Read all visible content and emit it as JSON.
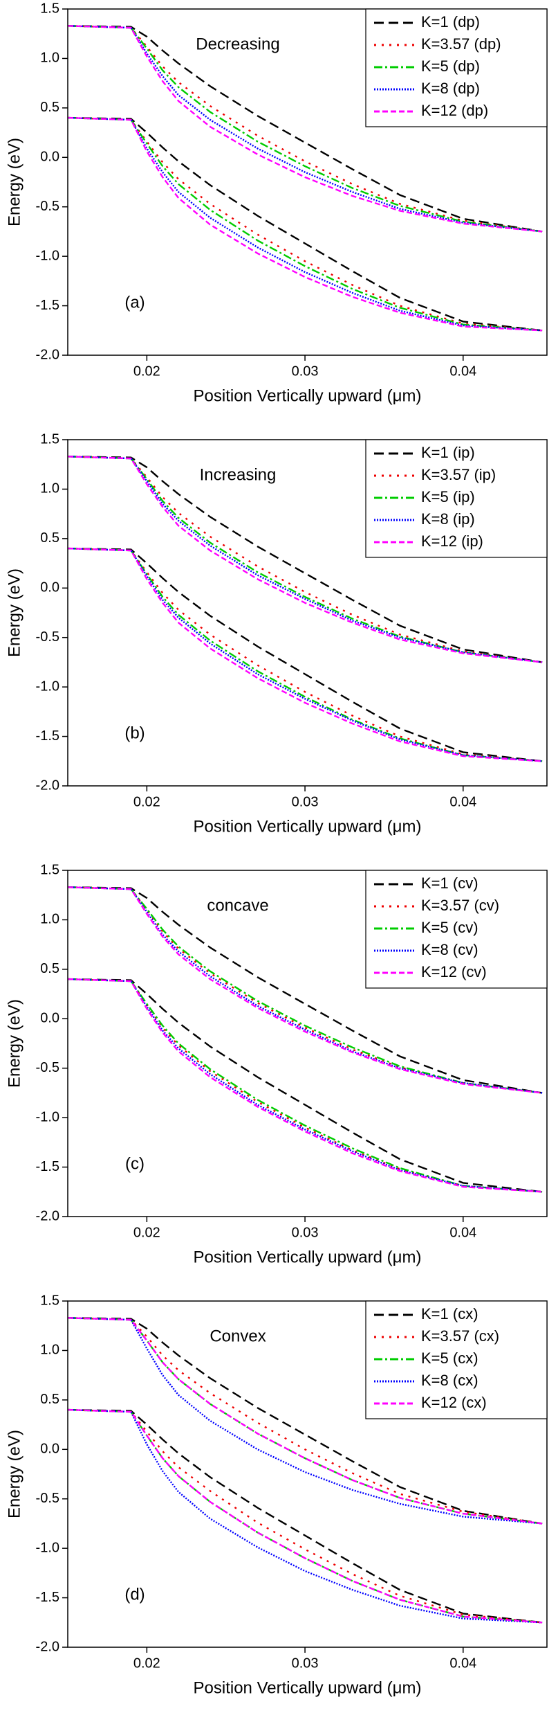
{
  "chart_data": [
    {
      "type": "line",
      "title": "Decreasing",
      "panel_label": "(a)",
      "x_label": "Position Vertically upward (μm)",
      "y_label": "Energy (eV)",
      "x": [
        0.015,
        0.019,
        0.02,
        0.021,
        0.022,
        0.024,
        0.027,
        0.03,
        0.033,
        0.036,
        0.04,
        0.045
      ],
      "xlim": [
        0.015,
        0.0453
      ],
      "ylim": [
        -2,
        1.5
      ],
      "xticks": [
        0.02,
        0.03,
        0.04
      ],
      "yticks": [
        {
          "value": -2,
          "label": "-2.0"
        },
        -1.5,
        {
          "value": -1,
          "label": "-1.0"
        },
        -0.5,
        {
          "value": 0,
          "label": "0.0"
        },
        0.5,
        {
          "value": 1,
          "label": "1.0"
        },
        1.5
      ],
      "legend": "upper-right",
      "series": [
        {
          "name": "K=1 (dp)",
          "color": "#000000",
          "dash": "14,7",
          "values": [
            1.33,
            1.32,
            1.22,
            1.08,
            0.95,
            0.72,
            0.42,
            0.15,
            -0.12,
            -0.38,
            -0.62,
            -0.75
          ],
          "lower": [
            0.4,
            0.39,
            0.25,
            0.1,
            -0.04,
            -0.28,
            -0.59,
            -0.87,
            -1.15,
            -1.42,
            -1.66,
            -1.75
          ]
        },
        {
          "name": "K=3.57 (dp)",
          "color": "#ee0000",
          "dash": "3,8",
          "values": [
            1.33,
            1.31,
            1.12,
            0.92,
            0.76,
            0.52,
            0.22,
            -0.04,
            -0.27,
            -0.47,
            -0.64,
            -0.75
          ],
          "lower": [
            0.4,
            0.38,
            0.16,
            -0.05,
            -0.22,
            -0.47,
            -0.78,
            -1.05,
            -1.29,
            -1.5,
            -1.68,
            -1.75
          ]
        },
        {
          "name": "K=5 (dp)",
          "color": "#00cc00",
          "dash": "12,4,3,4",
          "values": [
            1.33,
            1.31,
            1.1,
            0.88,
            0.71,
            0.46,
            0.16,
            -0.09,
            -0.31,
            -0.49,
            -0.65,
            -0.75
          ],
          "lower": [
            0.4,
            0.38,
            0.14,
            -0.09,
            -0.27,
            -0.53,
            -0.84,
            -1.1,
            -1.33,
            -1.52,
            -1.69,
            -1.75
          ]
        },
        {
          "name": "K=8 (dp)",
          "color": "#0000ff",
          "dash": "2,2",
          "values": [
            1.33,
            1.31,
            1.05,
            0.82,
            0.63,
            0.38,
            0.09,
            -0.15,
            -0.35,
            -0.52,
            -0.66,
            -0.75
          ],
          "lower": [
            0.4,
            0.38,
            0.09,
            -0.15,
            -0.35,
            -0.61,
            -0.91,
            -1.16,
            -1.37,
            -1.55,
            -1.7,
            -1.75
          ]
        },
        {
          "name": "K=12 (dp)",
          "color": "#ff00ff",
          "dash": "8,4",
          "values": [
            1.33,
            1.31,
            1.02,
            0.77,
            0.57,
            0.31,
            0.03,
            -0.2,
            -0.39,
            -0.54,
            -0.67,
            -0.75
          ],
          "lower": [
            0.4,
            0.38,
            0.06,
            -0.2,
            -0.41,
            -0.68,
            -0.97,
            -1.21,
            -1.41,
            -1.57,
            -1.71,
            -1.75
          ]
        }
      ]
    },
    {
      "type": "line",
      "title": "Increasing",
      "panel_label": "(b)",
      "x_label": "Position Vertically upward (μm)",
      "y_label": "Energy (eV)",
      "x": [
        0.015,
        0.019,
        0.02,
        0.021,
        0.022,
        0.024,
        0.027,
        0.03,
        0.033,
        0.036,
        0.04,
        0.045
      ],
      "xlim": [
        0.015,
        0.0453
      ],
      "ylim": [
        -2,
        1.5
      ],
      "xticks": [
        0.02,
        0.03,
        0.04
      ],
      "yticks": [
        {
          "value": -2,
          "label": "-2.0"
        },
        -1.5,
        {
          "value": -1,
          "label": "-1.0"
        },
        -0.5,
        {
          "value": 0,
          "label": "0.0"
        },
        0.5,
        {
          "value": 1,
          "label": "1.0"
        },
        1.5
      ],
      "legend": "upper-right",
      "series": [
        {
          "name": "K=1 (ip)",
          "color": "#000000",
          "dash": "14,7",
          "values": [
            1.33,
            1.32,
            1.22,
            1.08,
            0.95,
            0.72,
            0.42,
            0.15,
            -0.12,
            -0.38,
            -0.62,
            -0.75
          ],
          "lower": [
            0.4,
            0.39,
            0.25,
            0.1,
            -0.04,
            -0.28,
            -0.59,
            -0.87,
            -1.15,
            -1.42,
            -1.66,
            -1.75
          ]
        },
        {
          "name": "K=3.57 (ip)",
          "color": "#ee0000",
          "dash": "3,8",
          "values": [
            1.33,
            1.31,
            1.12,
            0.92,
            0.76,
            0.52,
            0.22,
            -0.04,
            -0.27,
            -0.47,
            -0.64,
            -0.75
          ],
          "lower": [
            0.4,
            0.38,
            0.16,
            -0.05,
            -0.22,
            -0.47,
            -0.78,
            -1.05,
            -1.29,
            -1.5,
            -1.68,
            -1.75
          ]
        },
        {
          "name": "K=5 (ip)",
          "color": "#00cc00",
          "dash": "12,4,3,4",
          "values": [
            1.33,
            1.31,
            1.1,
            0.88,
            0.71,
            0.46,
            0.16,
            -0.09,
            -0.31,
            -0.49,
            -0.65,
            -0.75
          ],
          "lower": [
            0.4,
            0.38,
            0.14,
            -0.09,
            -0.27,
            -0.53,
            -0.84,
            -1.1,
            -1.33,
            -1.52,
            -1.69,
            -1.75
          ]
        },
        {
          "name": "K=8 (ip)",
          "color": "#0000ff",
          "dash": "2,2",
          "values": [
            1.33,
            1.31,
            1.08,
            0.85,
            0.68,
            0.43,
            0.13,
            -0.11,
            -0.33,
            -0.5,
            -0.65,
            -0.75
          ],
          "lower": [
            0.4,
            0.38,
            0.12,
            -0.12,
            -0.3,
            -0.56,
            -0.87,
            -1.12,
            -1.34,
            -1.53,
            -1.69,
            -1.75
          ]
        },
        {
          "name": "K=12 (ip)",
          "color": "#ff00ff",
          "dash": "8,4",
          "values": [
            1.33,
            1.31,
            1.05,
            0.82,
            0.63,
            0.38,
            0.09,
            -0.15,
            -0.35,
            -0.52,
            -0.66,
            -0.75
          ],
          "lower": [
            0.4,
            0.38,
            0.09,
            -0.15,
            -0.35,
            -0.61,
            -0.91,
            -1.16,
            -1.37,
            -1.55,
            -1.7,
            -1.75
          ]
        }
      ]
    },
    {
      "type": "line",
      "title": "concave",
      "panel_label": "(c)",
      "x_label": "Position Vertically upward (μm)",
      "y_label": "Energy (eV)",
      "x": [
        0.015,
        0.019,
        0.02,
        0.021,
        0.022,
        0.024,
        0.027,
        0.03,
        0.033,
        0.036,
        0.04,
        0.045
      ],
      "xlim": [
        0.015,
        0.0453
      ],
      "ylim": [
        -2,
        1.5
      ],
      "xticks": [
        0.02,
        0.03,
        0.04
      ],
      "yticks": [
        {
          "value": -2,
          "label": "-2.0"
        },
        -1.5,
        {
          "value": -1,
          "label": "-1.0"
        },
        -0.5,
        {
          "value": 0,
          "label": "0.0"
        },
        0.5,
        {
          "value": 1,
          "label": "1.0"
        },
        1.5
      ],
      "legend": "upper-right",
      "series": [
        {
          "name": "K=1 (cv)",
          "color": "#000000",
          "dash": "14,7",
          "values": [
            1.33,
            1.32,
            1.22,
            1.08,
            0.95,
            0.72,
            0.42,
            0.15,
            -0.12,
            -0.38,
            -0.62,
            -0.75
          ],
          "lower": [
            0.4,
            0.39,
            0.25,
            0.1,
            -0.04,
            -0.28,
            -0.59,
            -0.87,
            -1.15,
            -1.42,
            -1.66,
            -1.75
          ]
        },
        {
          "name": "K=3.57 (cv)",
          "color": "#ee0000",
          "dash": "3,8",
          "values": [
            1.33,
            1.31,
            1.1,
            0.88,
            0.71,
            0.46,
            0.16,
            -0.09,
            -0.31,
            -0.49,
            -0.65,
            -0.75
          ],
          "lower": [
            0.4,
            0.38,
            0.14,
            -0.09,
            -0.27,
            -0.53,
            -0.84,
            -1.1,
            -1.33,
            -1.52,
            -1.69,
            -1.75
          ]
        },
        {
          "name": "K=5 (cv)",
          "color": "#00cc00",
          "dash": "12,4,3,4",
          "values": [
            1.33,
            1.31,
            1.11,
            0.9,
            0.73,
            0.48,
            0.18,
            -0.07,
            -0.29,
            -0.48,
            -0.65,
            -0.75
          ],
          "lower": [
            0.4,
            0.38,
            0.15,
            -0.07,
            -0.25,
            -0.51,
            -0.82,
            -1.08,
            -1.31,
            -1.51,
            -1.69,
            -1.75
          ]
        },
        {
          "name": "K=8 (cv)",
          "color": "#0000ff",
          "dash": "2,2",
          "values": [
            1.33,
            1.31,
            1.08,
            0.85,
            0.68,
            0.43,
            0.13,
            -0.11,
            -0.33,
            -0.5,
            -0.65,
            -0.75
          ],
          "lower": [
            0.4,
            0.38,
            0.12,
            -0.12,
            -0.3,
            -0.56,
            -0.87,
            -1.12,
            -1.34,
            -1.53,
            -1.69,
            -1.75
          ]
        },
        {
          "name": "K=12 (cv)",
          "color": "#ff00ff",
          "dash": "8,4",
          "values": [
            1.33,
            1.31,
            1.06,
            0.83,
            0.65,
            0.4,
            0.11,
            -0.13,
            -0.34,
            -0.51,
            -0.66,
            -0.75
          ],
          "lower": [
            0.4,
            0.38,
            0.1,
            -0.14,
            -0.33,
            -0.59,
            -0.89,
            -1.14,
            -1.36,
            -1.54,
            -1.7,
            -1.75
          ]
        }
      ]
    },
    {
      "type": "line",
      "title": "Convex",
      "panel_label": "(d)",
      "x_label": "Position Vertically upward (μm)",
      "y_label": "Energy (eV)",
      "x": [
        0.015,
        0.019,
        0.02,
        0.021,
        0.022,
        0.024,
        0.027,
        0.03,
        0.033,
        0.036,
        0.04,
        0.045
      ],
      "xlim": [
        0.015,
        0.0453
      ],
      "ylim": [
        -2,
        1.5
      ],
      "xticks": [
        0.02,
        0.03,
        0.04
      ],
      "yticks": [
        {
          "value": -2,
          "label": "-2.0"
        },
        -1.5,
        {
          "value": -1,
          "label": "-1.0"
        },
        -0.5,
        {
          "value": 0,
          "label": "0.0"
        },
        0.5,
        {
          "value": 1,
          "label": "1.0"
        },
        1.5
      ],
      "legend": "upper-right",
      "series": [
        {
          "name": "K=1 (cx)",
          "color": "#000000",
          "dash": "14,7",
          "values": [
            1.33,
            1.32,
            1.22,
            1.08,
            0.95,
            0.72,
            0.42,
            0.15,
            -0.12,
            -0.38,
            -0.62,
            -0.75
          ],
          "lower": [
            0.4,
            0.39,
            0.25,
            0.1,
            -0.04,
            -0.28,
            -0.59,
            -0.87,
            -1.15,
            -1.42,
            -1.66,
            -1.75
          ]
        },
        {
          "name": "K=3.57 (cx)",
          "color": "#ee0000",
          "dash": "3,8",
          "values": [
            1.33,
            1.31,
            1.14,
            0.95,
            0.8,
            0.57,
            0.27,
            0.0,
            -0.24,
            -0.45,
            -0.63,
            -0.75
          ],
          "lower": [
            0.4,
            0.38,
            0.18,
            -0.02,
            -0.18,
            -0.42,
            -0.74,
            -1.01,
            -1.26,
            -1.48,
            -1.67,
            -1.75
          ]
        },
        {
          "name": "K=5 (cx)",
          "color": "#00cc00",
          "dash": "12,4,3,4",
          "values": [
            1.33,
            1.31,
            1.1,
            0.88,
            0.71,
            0.46,
            0.16,
            -0.09,
            -0.31,
            -0.49,
            -0.65,
            -0.75
          ],
          "lower": [
            0.4,
            0.38,
            0.14,
            -0.09,
            -0.27,
            -0.53,
            -0.84,
            -1.1,
            -1.33,
            -1.52,
            -1.69,
            -1.75
          ]
        },
        {
          "name": "K=8 (cx)",
          "color": "#0000ff",
          "dash": "2,2",
          "values": [
            1.33,
            1.31,
            1.02,
            0.75,
            0.55,
            0.29,
            0.0,
            -0.23,
            -0.41,
            -0.55,
            -0.68,
            -0.75
          ],
          "lower": [
            0.4,
            0.38,
            0.05,
            -0.22,
            -0.43,
            -0.7,
            -0.99,
            -1.23,
            -1.42,
            -1.58,
            -1.71,
            -1.75
          ]
        },
        {
          "name": "K=12 (cx)",
          "color": "#ff00ff",
          "dash": "8,4",
          "values": [
            1.33,
            1.31,
            1.1,
            0.88,
            0.71,
            0.46,
            0.16,
            -0.09,
            -0.31,
            -0.49,
            -0.65,
            -0.75
          ],
          "lower": [
            0.4,
            0.38,
            0.14,
            -0.09,
            -0.27,
            -0.53,
            -0.84,
            -1.1,
            -1.33,
            -1.52,
            -1.69,
            -1.75
          ]
        }
      ]
    }
  ]
}
